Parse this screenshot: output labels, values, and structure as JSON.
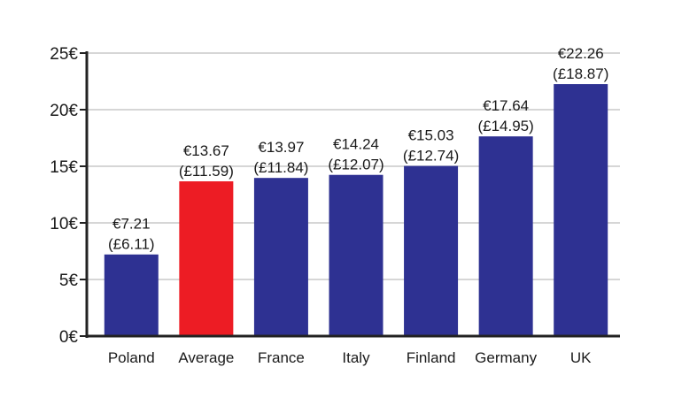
{
  "chart_data": {
    "type": "bar",
    "title": "",
    "xlabel": "",
    "ylabel": "",
    "ylim": [
      0,
      25
    ],
    "yticks": [
      0,
      5,
      10,
      15,
      20,
      25
    ],
    "ytick_labels": [
      "0€",
      "5€",
      "10€",
      "15€",
      "20€",
      "25€"
    ],
    "grid": true,
    "categories": [
      "Poland",
      "Average",
      "France",
      "Italy",
      "Finland",
      "Germany",
      "UK"
    ],
    "values": [
      7.21,
      13.67,
      13.97,
      14.24,
      15.03,
      17.64,
      22.26
    ],
    "labels_eur": [
      "€7.21",
      "€13.67",
      "€13.97",
      "€14.24",
      "€15.03",
      "€17.64",
      "€22.26"
    ],
    "labels_gbp": [
      "(£6.11)",
      "(£11.59)",
      "(£11.84)",
      "(£12.07)",
      "(£12.74)",
      "(£14.95)",
      "(£18.87)"
    ],
    "colors": [
      "#2e3192",
      "#ed1c24",
      "#2e3192",
      "#2e3192",
      "#2e3192",
      "#2e3192",
      "#2e3192"
    ],
    "grid_color": "#c8c8c8",
    "axis_color": "#222222"
  }
}
